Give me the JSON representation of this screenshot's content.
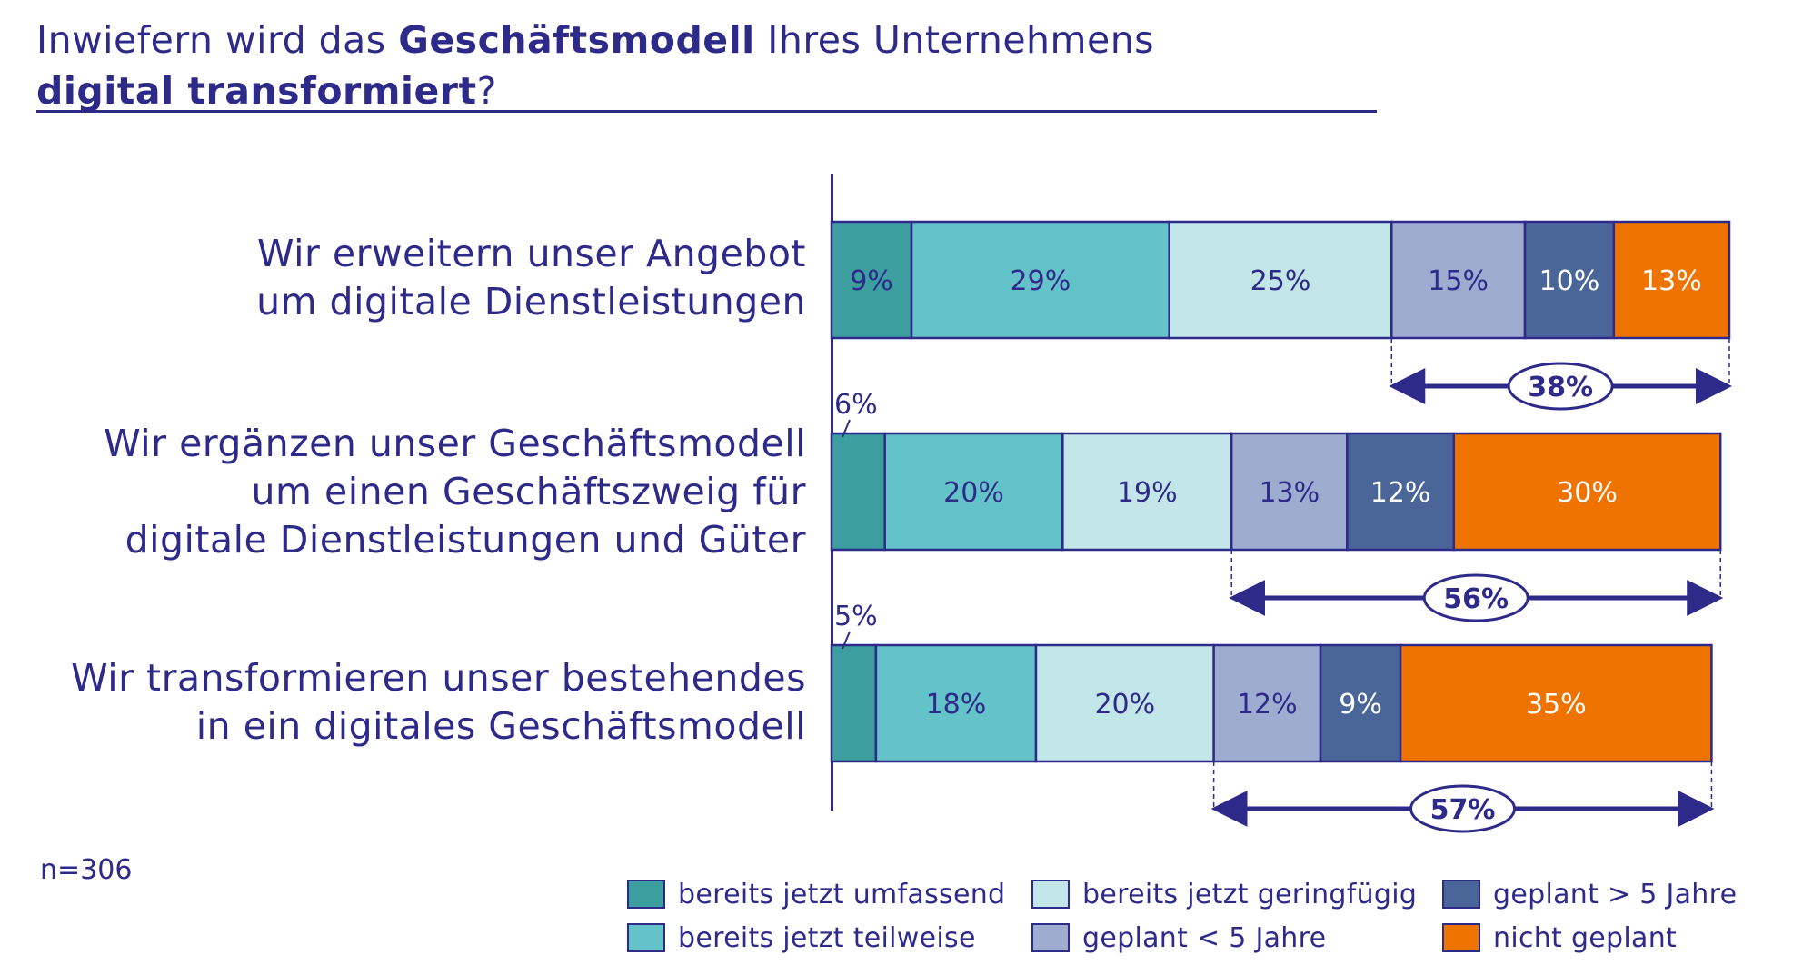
{
  "title": {
    "part1": "Inwiefern wird das ",
    "part2_bold": "Geschäftsmodell",
    "part3": " Ihres Unternehmens",
    "part4_bold": "digital transformiert",
    "part5": "?"
  },
  "sample_size": "n=306",
  "colors": {
    "text": "#2e2a8a",
    "umfassend": "#3c9e9f",
    "teilweise": "#64c3c8",
    "geringfuegig": "#c3e6e8",
    "geplant_lt5": "#9eacd0",
    "geplant_gt5": "#4a6699",
    "nicht_geplant": "#ef7300"
  },
  "chart_data": {
    "type": "bar",
    "orientation": "horizontal",
    "stacked": true,
    "unit": "%",
    "categories": [
      "Wir erweitern unser Angebot um digitale Dienstleistungen",
      "Wir ergänzen unser Geschäftsmodell um einen Geschäftszweig für digitale Dienstleistungen und Güter",
      "Wir transformieren unser bestehendes in ein digitales Geschäftsmodell"
    ],
    "category_lines": [
      [
        "Wir erweitern unser Angebot",
        "um digitale Dienstleistungen"
      ],
      [
        "Wir ergänzen unser Geschäftsmodell",
        "um einen Geschäftszweig für",
        "digitale Dienstleistungen und Güter"
      ],
      [
        "Wir transformieren unser bestehendes",
        "in ein digitales Geschäftsmodell"
      ]
    ],
    "series": [
      {
        "name": "bereits jetzt umfassend",
        "color_key": "umfassend",
        "values": [
          9,
          6,
          5
        ],
        "labels": [
          "9%",
          "6%",
          "5%"
        ]
      },
      {
        "name": "bereits jetzt teilweise",
        "color_key": "teilweise",
        "values": [
          29,
          20,
          18
        ],
        "labels": [
          "29%",
          "20%",
          "18%"
        ]
      },
      {
        "name": "bereits jetzt geringfügig",
        "color_key": "geringfuegig",
        "values": [
          25,
          19,
          20
        ],
        "labels": [
          "25%",
          "19%",
          "20%"
        ]
      },
      {
        "name": "geplant < 5 Jahre",
        "color_key": "geplant_lt5",
        "values": [
          15,
          13,
          12
        ],
        "labels": [
          "15%",
          "13%",
          "12%"
        ]
      },
      {
        "name": "geplant > 5 Jahre",
        "color_key": "geplant_gt5",
        "values": [
          10,
          12,
          9
        ],
        "labels": [
          "10%",
          "12%",
          "9%"
        ]
      },
      {
        "name": "nicht geplant",
        "color_key": "nicht_geplant",
        "values": [
          13,
          30,
          35
        ],
        "labels": [
          "13%",
          "30%",
          "35%"
        ]
      }
    ],
    "outside_label_rows": [
      1,
      2
    ],
    "bracket_totals": [
      "38%",
      "56%",
      "57%"
    ],
    "bracket_start_series": 3,
    "legend_placement": "bottom-right",
    "legend_order": [
      "bereits jetzt umfassend",
      "bereits jetzt geringfügig",
      "geplant > 5 Jahre",
      "bereits jetzt teilweise",
      "geplant < 5 Jahre",
      "nicht geplant"
    ],
    "xlim": [
      0,
      101
    ],
    "grid": false
  }
}
